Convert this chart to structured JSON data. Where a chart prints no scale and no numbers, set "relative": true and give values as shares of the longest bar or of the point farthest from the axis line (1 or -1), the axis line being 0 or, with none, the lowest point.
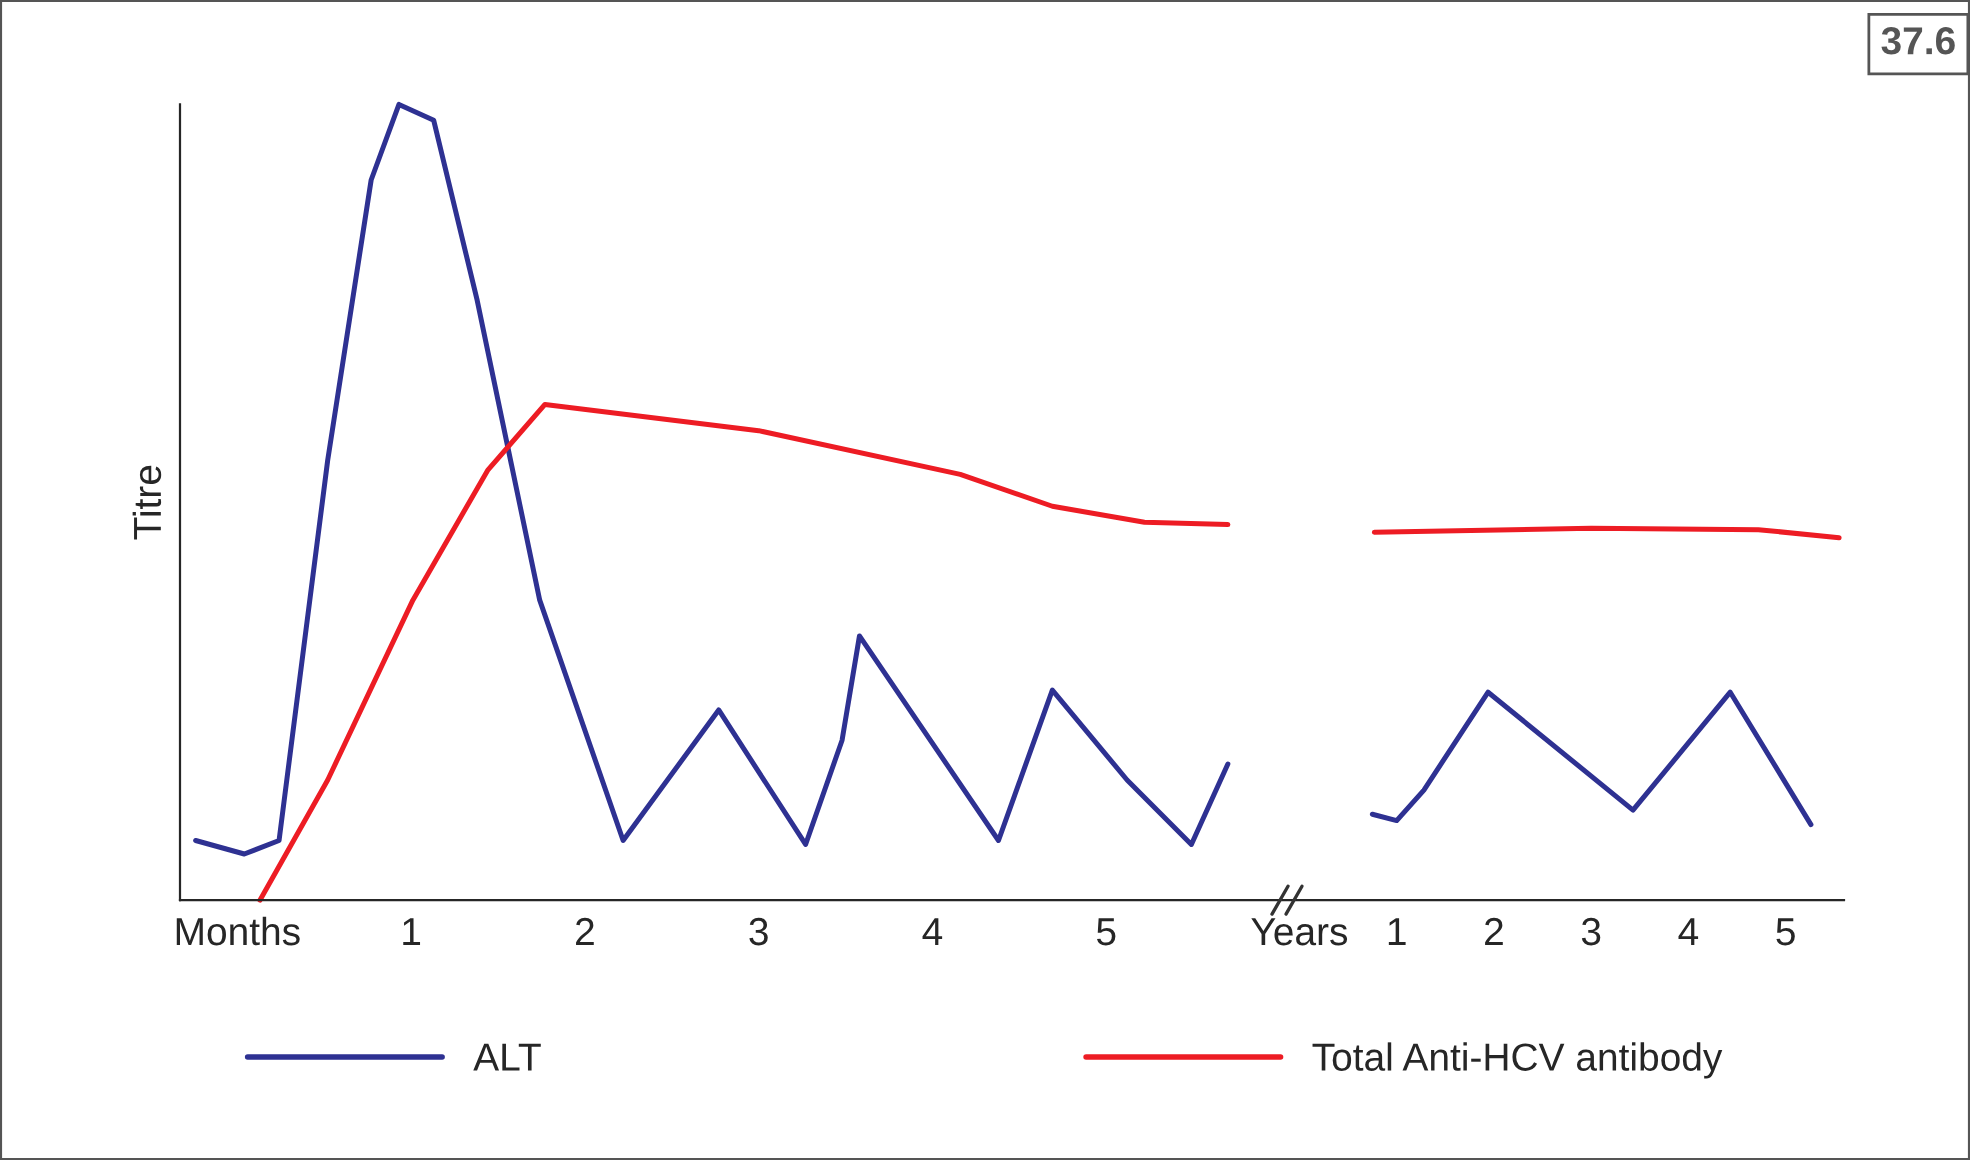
{
  "chart_data": [
    {
      "type": "line",
      "relative": true,
      "ylabel": "Titre",
      "xlim": [
        -0.33,
        6.0
      ],
      "xticks": [
        {
          "value": 0,
          "label": "Months"
        },
        1,
        2,
        3,
        4,
        5
      ],
      "grid": false,
      "legend": "bottom",
      "annotations": [
        "37.6"
      ],
      "series": [
        {
          "name": "ALT",
          "color": "#2e3192",
          "x": [
            -0.24,
            0.04,
            0.24,
            0.52,
            0.77,
            0.93,
            1.13,
            1.38,
            1.74,
            2.22,
            2.77,
            3.27,
            3.48,
            3.58,
            4.38,
            4.69,
            5.12,
            5.49,
            5.7
          ],
          "values": [
            0.075,
            0.058,
            0.075,
            0.553,
            0.905,
            1,
            0.98,
            0.754,
            0.377,
            0.075,
            0.239,
            0.07,
            0.201,
            0.332,
            0.075,
            0.264,
            0.151,
            0.07,
            0.171
          ]
        },
        {
          "name": "Total Anti-HCV antibody",
          "color": "#ed1c24",
          "x": [
            0.13,
            0.52,
            1.01,
            1.44,
            1.77,
            3.0,
            4.16,
            4.69,
            5.22,
            5.7
          ],
          "values": [
            0,
            0.151,
            0.377,
            0.54,
            0.623,
            0.59,
            0.535,
            0.495,
            0.475,
            0.472
          ]
        }
      ]
    },
    {
      "type": "line",
      "relative": true,
      "xlim": [
        -0.2,
        5.6
      ],
      "tick_labels": "x",
      "xticks": [
        {
          "value": 0,
          "label": "Years"
        },
        1,
        2,
        3,
        4,
        5
      ],
      "grid": false,
      "series": [
        {
          "color": "#2e3192",
          "x": [
            0.75,
            1.0,
            1.28,
            1.94,
            3.43,
            4.43,
            5.26
          ],
          "values": [
            0.231,
            0.214,
            0.296,
            0.559,
            0.242,
            0.559,
            0.203
          ]
        },
        {
          "color": "#ed1c24",
          "x": [
            0.77,
            3.0,
            4.72,
            5.55
          ],
          "values": [
            0.989,
            1,
            0.996,
            0.974
          ]
        }
      ]
    }
  ]
}
